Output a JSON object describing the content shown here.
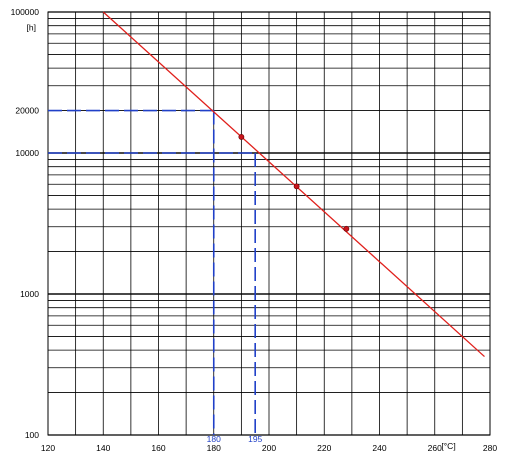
{
  "chart_data": {
    "type": "line",
    "title": "",
    "xlabel": "[°C]",
    "ylabel": "[h]",
    "x_scale": "linear",
    "y_scale": "log",
    "xlim": [
      120,
      280
    ],
    "ylim": [
      100,
      100000
    ],
    "grid": true,
    "x_ticks": [
      120,
      140,
      160,
      180,
      200,
      220,
      240,
      260,
      280
    ],
    "y_ticks": [
      {
        "value": 100,
        "label": "100"
      },
      {
        "value": 1000,
        "label": "1000"
      },
      {
        "value": 10000,
        "label": "10000"
      },
      {
        "value": 20000,
        "label": "20000"
      },
      {
        "value": 100000,
        "label": "100000"
      }
    ],
    "series": [
      {
        "kind": "fit-line",
        "color": "#e0201c",
        "x": [
          140,
          278
        ],
        "y": [
          100000,
          360
        ]
      },
      {
        "kind": "measured-points",
        "color": "#e0201c",
        "x": [
          190,
          210,
          228
        ],
        "y": [
          13000,
          5800,
          2900
        ]
      }
    ],
    "guide_lines": [
      {
        "x": 180,
        "y": 20000,
        "label": "180",
        "color": "#2040c8"
      },
      {
        "x": 195,
        "y": 10000,
        "label": "195",
        "color": "#2040c8"
      }
    ]
  }
}
